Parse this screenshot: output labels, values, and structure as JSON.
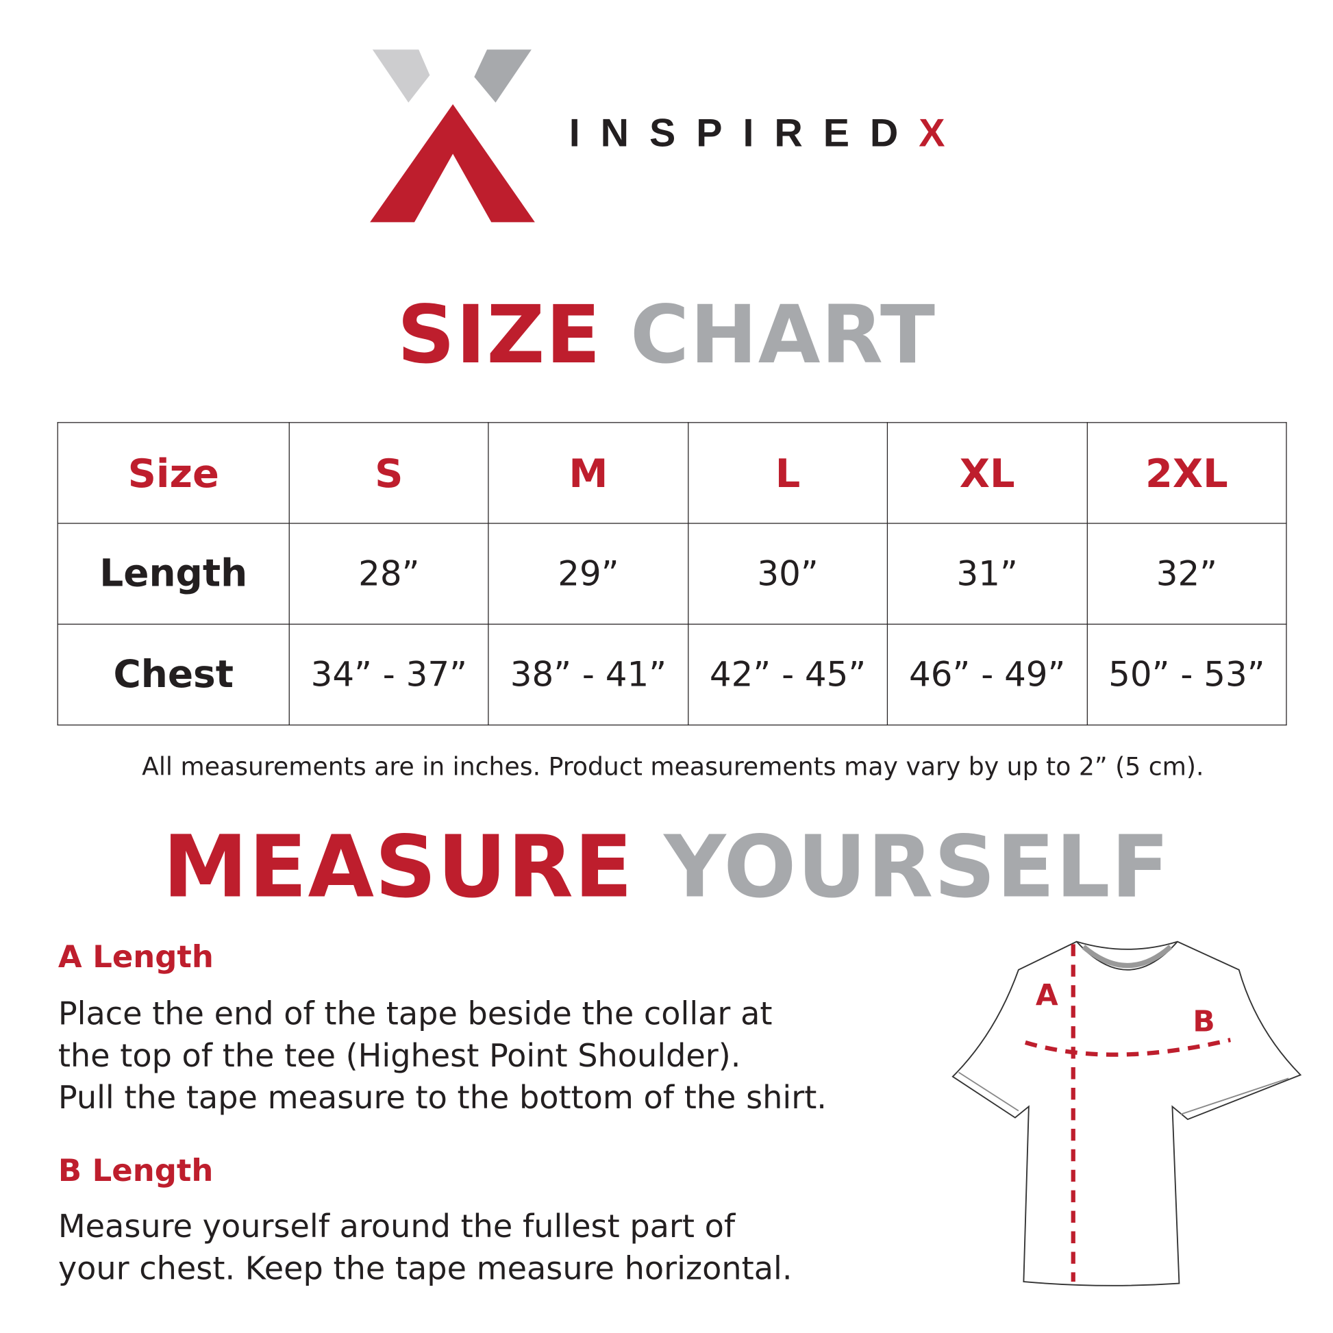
{
  "brand": {
    "name_main": "INSPIRED",
    "name_accent": "X",
    "colors": {
      "red": "#be1e2d",
      "grey": "#a7a9ac",
      "light_grey": "#cdcdcf",
      "text": "#231f20"
    }
  },
  "size_chart": {
    "title_accent": "SIZE",
    "title_rest": "CHART",
    "header": [
      "Size",
      "S",
      "M",
      "L",
      "XL",
      "2XL"
    ],
    "rows": [
      [
        "Length",
        "28”",
        "29”",
        "30”",
        "31”",
        "32”"
      ],
      [
        "Chest",
        "34” - 37”",
        "38” - 41”",
        "42” - 45”",
        "46” - 49”",
        "50” - 53”"
      ]
    ],
    "note": "All measurements are in inches. Product measurements may vary by up to 2” (5 cm)."
  },
  "measure": {
    "title_accent": "MEASURE",
    "title_rest": "YOURSELF",
    "a": {
      "heading": "A Length",
      "lines": [
        "Place the end of the tape beside the collar at",
        "the top of the tee (Highest Point Shoulder).",
        "Pull the tape measure to the bottom of the shirt."
      ]
    },
    "b": {
      "heading": "B Length",
      "lines": [
        "Measure yourself around the fullest part of",
        "your chest. Keep the tape measure horizontal."
      ]
    },
    "diagram": {
      "label_a": "A",
      "label_b": "B"
    }
  }
}
